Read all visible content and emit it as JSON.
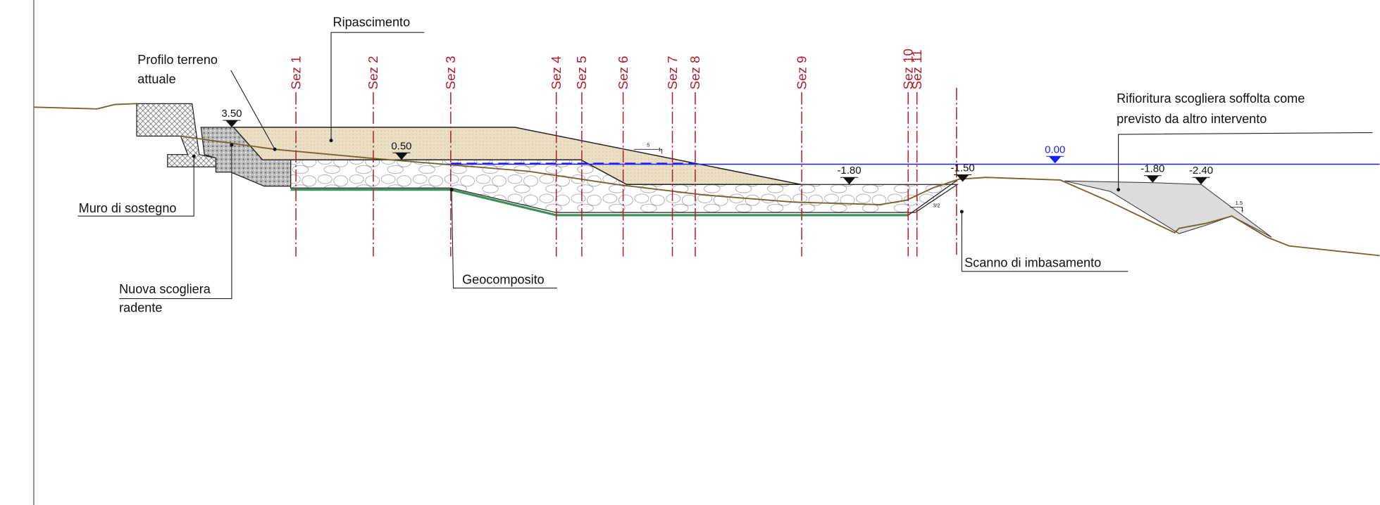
{
  "callouts": {
    "ripascimento": "Ripascimento",
    "profilo_terreno": [
      "Profilo terreno",
      "attuale"
    ],
    "muro": "Muro di sostegno",
    "nuova_scogliera": [
      "Nuova scogliera",
      "radente"
    ],
    "geocomposito": "Geocomposito",
    "scanno": "Scanno di imbasamento",
    "rifioritura": [
      "Rifioritura scogliera soffolta come",
      "previsto da altro intervento"
    ]
  },
  "sections": [
    "Sez 1",
    "Sez 2",
    "Sez 3",
    "Sez 4",
    "Sez 5",
    "Sez 6",
    "Sez 7",
    "Sez 8",
    "Sez 9",
    "Sez 10",
    "Sez 11"
  ],
  "elevations": [
    "3.50",
    "0.50",
    "-1.80",
    "-1.50",
    "0.00",
    "-1.80",
    "-2.40"
  ],
  "slopes": [
    "5",
    "1",
    "3/2",
    "1.5",
    "1"
  ]
}
